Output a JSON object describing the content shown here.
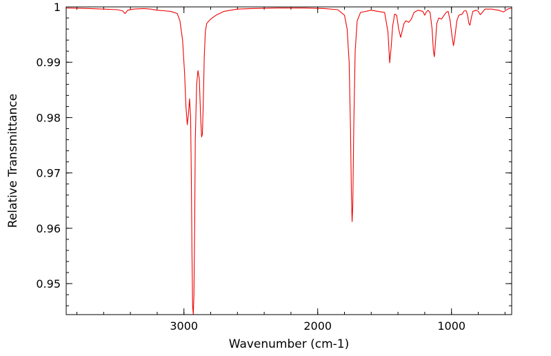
{
  "chart_data": {
    "type": "line",
    "title": "",
    "xlabel": "Wavenumber (cm-1)",
    "ylabel": "Relative Transmittance",
    "x_reversed": true,
    "xlim": [
      3880,
      550
    ],
    "ylim": [
      0.9444,
      1.0
    ],
    "x_ticks": [
      3000,
      2000,
      1000
    ],
    "x_tick_labels": [
      "3000",
      "2000",
      "1000"
    ],
    "x_minor_step": 200,
    "y_ticks": [
      1.0,
      0.99,
      0.98,
      0.97,
      0.96,
      0.95
    ],
    "y_tick_labels": [
      "1",
      "0.99",
      "0.98",
      "0.97",
      "0.96",
      "0.95"
    ],
    "y_minor_step": 0.002,
    "grid": false,
    "legend": "none",
    "colors": {
      "line": "#ee0000",
      "axis": "#000000"
    },
    "series": [
      {
        "color": "#ee0000",
        "points": [
          [
            3880,
            0.9998
          ],
          [
            3700,
            0.9997
          ],
          [
            3600,
            0.9996
          ],
          [
            3500,
            0.9995
          ],
          [
            3460,
            0.9993
          ],
          [
            3440,
            0.9988
          ],
          [
            3420,
            0.9994
          ],
          [
            3380,
            0.9996
          ],
          [
            3300,
            0.9997
          ],
          [
            3250,
            0.9996
          ],
          [
            3200,
            0.9994
          ],
          [
            3150,
            0.9993
          ],
          [
            3100,
            0.9992
          ],
          [
            3050,
            0.9988
          ],
          [
            3030,
            0.9975
          ],
          [
            3010,
            0.994
          ],
          [
            2995,
            0.988
          ],
          [
            2985,
            0.982
          ],
          [
            2975,
            0.9787
          ],
          [
            2965,
            0.981
          ],
          [
            2958,
            0.9834
          ],
          [
            2950,
            0.98
          ],
          [
            2945,
            0.97
          ],
          [
            2940,
            0.956
          ],
          [
            2935,
            0.946
          ],
          [
            2930,
            0.9444
          ],
          [
            2925,
            0.948
          ],
          [
            2920,
            0.96
          ],
          [
            2915,
            0.976
          ],
          [
            2905,
            0.986
          ],
          [
            2895,
            0.9885
          ],
          [
            2885,
            0.987
          ],
          [
            2875,
            0.98
          ],
          [
            2868,
            0.9765
          ],
          [
            2862,
            0.977
          ],
          [
            2855,
            0.983
          ],
          [
            2848,
            0.991
          ],
          [
            2840,
            0.9955
          ],
          [
            2830,
            0.997
          ],
          [
            2800,
            0.9978
          ],
          [
            2760,
            0.9985
          ],
          [
            2700,
            0.9992
          ],
          [
            2600,
            0.9996
          ],
          [
            2500,
            0.9997
          ],
          [
            2300,
            0.9998
          ],
          [
            2100,
            0.9998
          ],
          [
            1950,
            0.9997
          ],
          [
            1850,
            0.9995
          ],
          [
            1800,
            0.9985
          ],
          [
            1780,
            0.996
          ],
          [
            1765,
            0.99
          ],
          [
            1755,
            0.978
          ],
          [
            1748,
            0.966
          ],
          [
            1743,
            0.9612
          ],
          [
            1738,
            0.964
          ],
          [
            1730,
            0.979
          ],
          [
            1720,
            0.992
          ],
          [
            1705,
            0.9975
          ],
          [
            1680,
            0.999
          ],
          [
            1600,
            0.9994
          ],
          [
            1500,
            0.999
          ],
          [
            1475,
            0.9955
          ],
          [
            1462,
            0.9899
          ],
          [
            1450,
            0.993
          ],
          [
            1440,
            0.9965
          ],
          [
            1425,
            0.9987
          ],
          [
            1410,
            0.9985
          ],
          [
            1395,
            0.996
          ],
          [
            1380,
            0.9945
          ],
          [
            1370,
            0.9955
          ],
          [
            1355,
            0.997
          ],
          [
            1340,
            0.9975
          ],
          [
            1320,
            0.9972
          ],
          [
            1300,
            0.9978
          ],
          [
            1280,
            0.999
          ],
          [
            1250,
            0.9994
          ],
          [
            1215,
            0.9992
          ],
          [
            1200,
            0.9985
          ],
          [
            1190,
            0.999
          ],
          [
            1175,
            0.9994
          ],
          [
            1160,
            0.999
          ],
          [
            1145,
            0.996
          ],
          [
            1135,
            0.992
          ],
          [
            1128,
            0.991
          ],
          [
            1120,
            0.9935
          ],
          [
            1110,
            0.997
          ],
          [
            1095,
            0.998
          ],
          [
            1075,
            0.9978
          ],
          [
            1055,
            0.9985
          ],
          [
            1040,
            0.999
          ],
          [
            1025,
            0.9992
          ],
          [
            1010,
            0.9975
          ],
          [
            995,
            0.9945
          ],
          [
            985,
            0.993
          ],
          [
            975,
            0.9945
          ],
          [
            960,
            0.9975
          ],
          [
            945,
            0.9985
          ],
          [
            920,
            0.9987
          ],
          [
            905,
            0.9993
          ],
          [
            890,
            0.9993
          ],
          [
            880,
            0.9985
          ],
          [
            870,
            0.997
          ],
          [
            862,
            0.9967
          ],
          [
            852,
            0.998
          ],
          [
            840,
            0.9992
          ],
          [
            815,
            0.9994
          ],
          [
            800,
            0.9992
          ],
          [
            785,
            0.9986
          ],
          [
            770,
            0.999
          ],
          [
            750,
            0.9996
          ],
          [
            700,
            0.9996
          ],
          [
            650,
            0.9994
          ],
          [
            610,
            0.9991
          ],
          [
            580,
            0.9996
          ],
          [
            550,
            0.9998
          ]
        ]
      }
    ]
  }
}
